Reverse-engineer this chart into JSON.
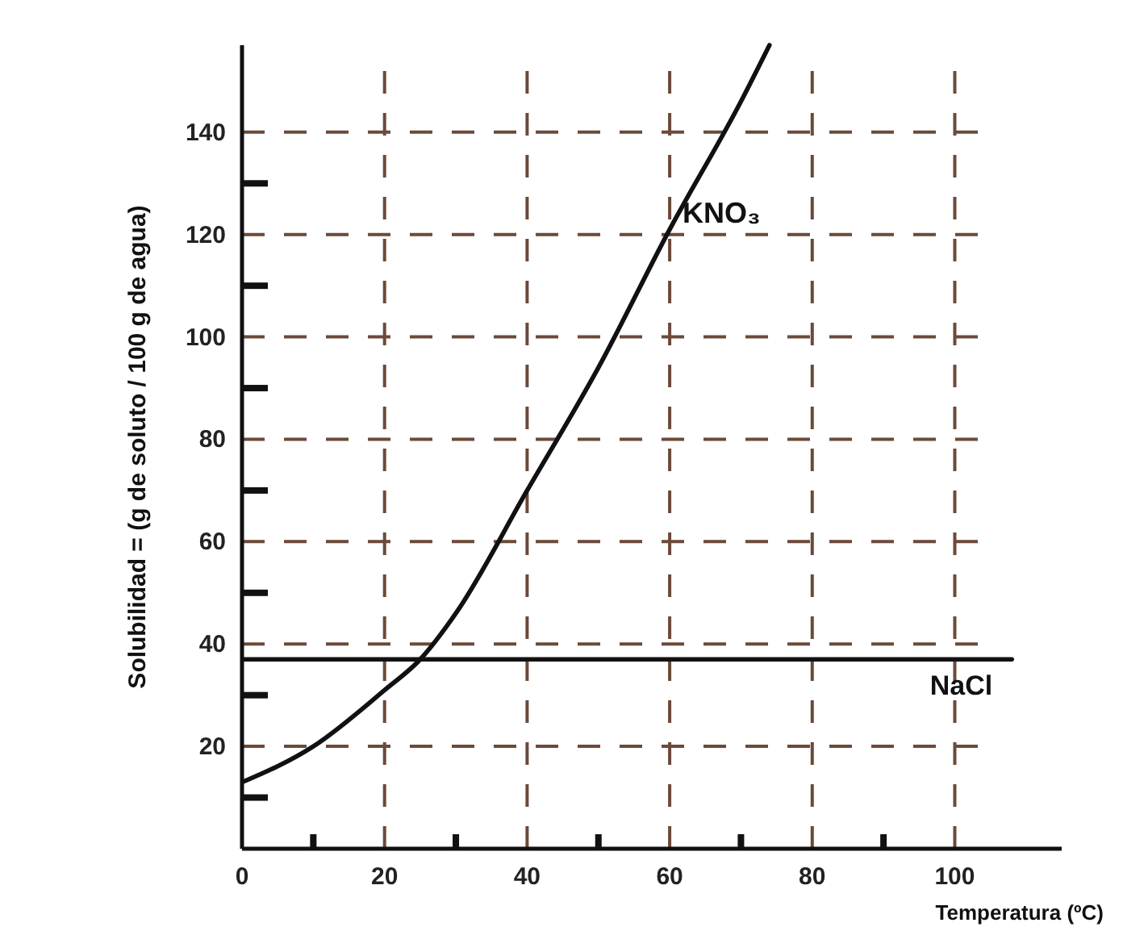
{
  "chart_data": {
    "type": "line",
    "xlabel": "Temperatura (ºC)",
    "ylabel": "Solubilidad = (g de soluto / 100 g de agua)",
    "xlim": [
      0,
      115
    ],
    "ylim": [
      0,
      157
    ],
    "xticks": [
      0,
      {
        "value": 10,
        "label": null
      },
      20,
      {
        "value": 30,
        "label": null
      },
      40,
      {
        "value": 50,
        "label": null
      },
      60,
      {
        "value": 70,
        "label": null
      },
      80,
      {
        "value": 90,
        "label": null
      },
      100
    ],
    "yticks": [
      {
        "value": 10,
        "label": null
      },
      20,
      {
        "value": 30,
        "label": null
      },
      40,
      {
        "value": 50,
        "label": null
      },
      60,
      {
        "value": 70,
        "label": null
      },
      80,
      {
        "value": 90,
        "label": null
      },
      100,
      {
        "value": 110,
        "label": null
      },
      120,
      {
        "value": 130,
        "label": null
      },
      140
    ],
    "grid": true,
    "marker": "none",
    "line_style": "solid",
    "series": [
      {
        "name": "KNO₃",
        "color": "#111111",
        "x": [
          0,
          10,
          20,
          25,
          30,
          40,
          50,
          60,
          70,
          74
        ],
        "values": [
          13,
          20,
          31,
          37,
          46,
          70,
          94,
          121,
          146,
          157
        ]
      },
      {
        "name": "NaCl",
        "color": "#111111",
        "x": [
          0,
          108
        ],
        "values": [
          37,
          37
        ]
      }
    ]
  }
}
